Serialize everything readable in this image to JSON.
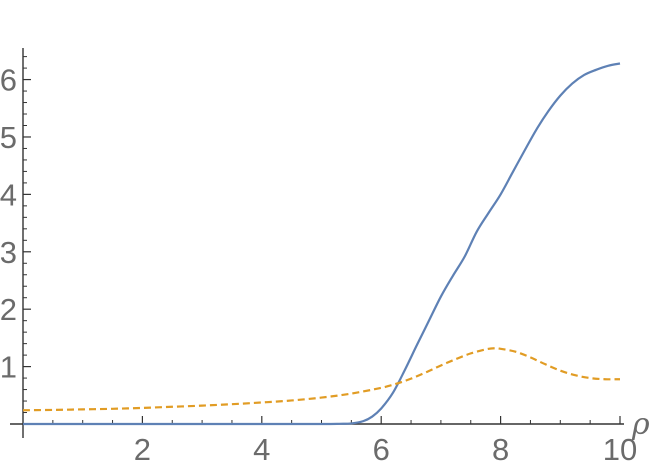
{
  "chart_data": {
    "type": "line",
    "title": "",
    "xlabel": "ρ",
    "ylabel": "",
    "xlim": [
      0,
      10
    ],
    "ylim": [
      0,
      6.55
    ],
    "grid": false,
    "legend": "none",
    "x_ticks": [
      {
        "value": 2,
        "label": "2"
      },
      {
        "value": 4,
        "label": "4"
      },
      {
        "value": 6,
        "label": "6"
      },
      {
        "value": 8,
        "label": "8"
      },
      {
        "value": 10,
        "label": "10"
      }
    ],
    "y_ticks": [
      {
        "value": 1,
        "label": "1"
      },
      {
        "value": 2,
        "label": "2"
      },
      {
        "value": 3,
        "label": "3"
      },
      {
        "value": 4,
        "label": "4"
      },
      {
        "value": 5,
        "label": "5"
      },
      {
        "value": 6,
        "label": "6"
      }
    ],
    "series": [
      {
        "color": "#5e81b5",
        "style": "solid",
        "points": [
          [
            0,
            0
          ],
          [
            1,
            0
          ],
          [
            2,
            0
          ],
          [
            3,
            0
          ],
          [
            4,
            0
          ],
          [
            5,
            0
          ],
          [
            5.3,
            0.003
          ],
          [
            5.5,
            0.01
          ],
          [
            5.7,
            0.05
          ],
          [
            5.85,
            0.13
          ],
          [
            6.0,
            0.27
          ],
          [
            6.2,
            0.55
          ],
          [
            6.4,
            0.95
          ],
          [
            6.6,
            1.38
          ],
          [
            6.8,
            1.8
          ],
          [
            7.0,
            2.22
          ],
          [
            7.2,
            2.58
          ],
          [
            7.4,
            2.92
          ],
          [
            7.6,
            3.35
          ],
          [
            7.8,
            3.68
          ],
          [
            8.0,
            4.0
          ],
          [
            8.2,
            4.38
          ],
          [
            8.4,
            4.76
          ],
          [
            8.6,
            5.13
          ],
          [
            8.8,
            5.45
          ],
          [
            9.0,
            5.72
          ],
          [
            9.2,
            5.93
          ],
          [
            9.4,
            6.08
          ],
          [
            9.6,
            6.17
          ],
          [
            9.8,
            6.24
          ],
          [
            10.0,
            6.28
          ]
        ]
      },
      {
        "color": "#e19c24",
        "style": "dashed",
        "points": [
          [
            0,
            0.24
          ],
          [
            0.5,
            0.245
          ],
          [
            1,
            0.255
          ],
          [
            1.5,
            0.265
          ],
          [
            2,
            0.28
          ],
          [
            2.5,
            0.3
          ],
          [
            3,
            0.32
          ],
          [
            3.5,
            0.345
          ],
          [
            4,
            0.375
          ],
          [
            4.5,
            0.41
          ],
          [
            5,
            0.46
          ],
          [
            5.5,
            0.53
          ],
          [
            6,
            0.63
          ],
          [
            6.25,
            0.7
          ],
          [
            6.5,
            0.79
          ],
          [
            6.75,
            0.9
          ],
          [
            7.0,
            1.02
          ],
          [
            7.25,
            1.13
          ],
          [
            7.5,
            1.23
          ],
          [
            7.75,
            1.3
          ],
          [
            7.9,
            1.32
          ],
          [
            8.0,
            1.31
          ],
          [
            8.25,
            1.26
          ],
          [
            8.5,
            1.16
          ],
          [
            8.75,
            1.04
          ],
          [
            9.0,
            0.93
          ],
          [
            9.25,
            0.85
          ],
          [
            9.5,
            0.8
          ],
          [
            9.75,
            0.78
          ],
          [
            10.0,
            0.78
          ]
        ]
      }
    ]
  }
}
